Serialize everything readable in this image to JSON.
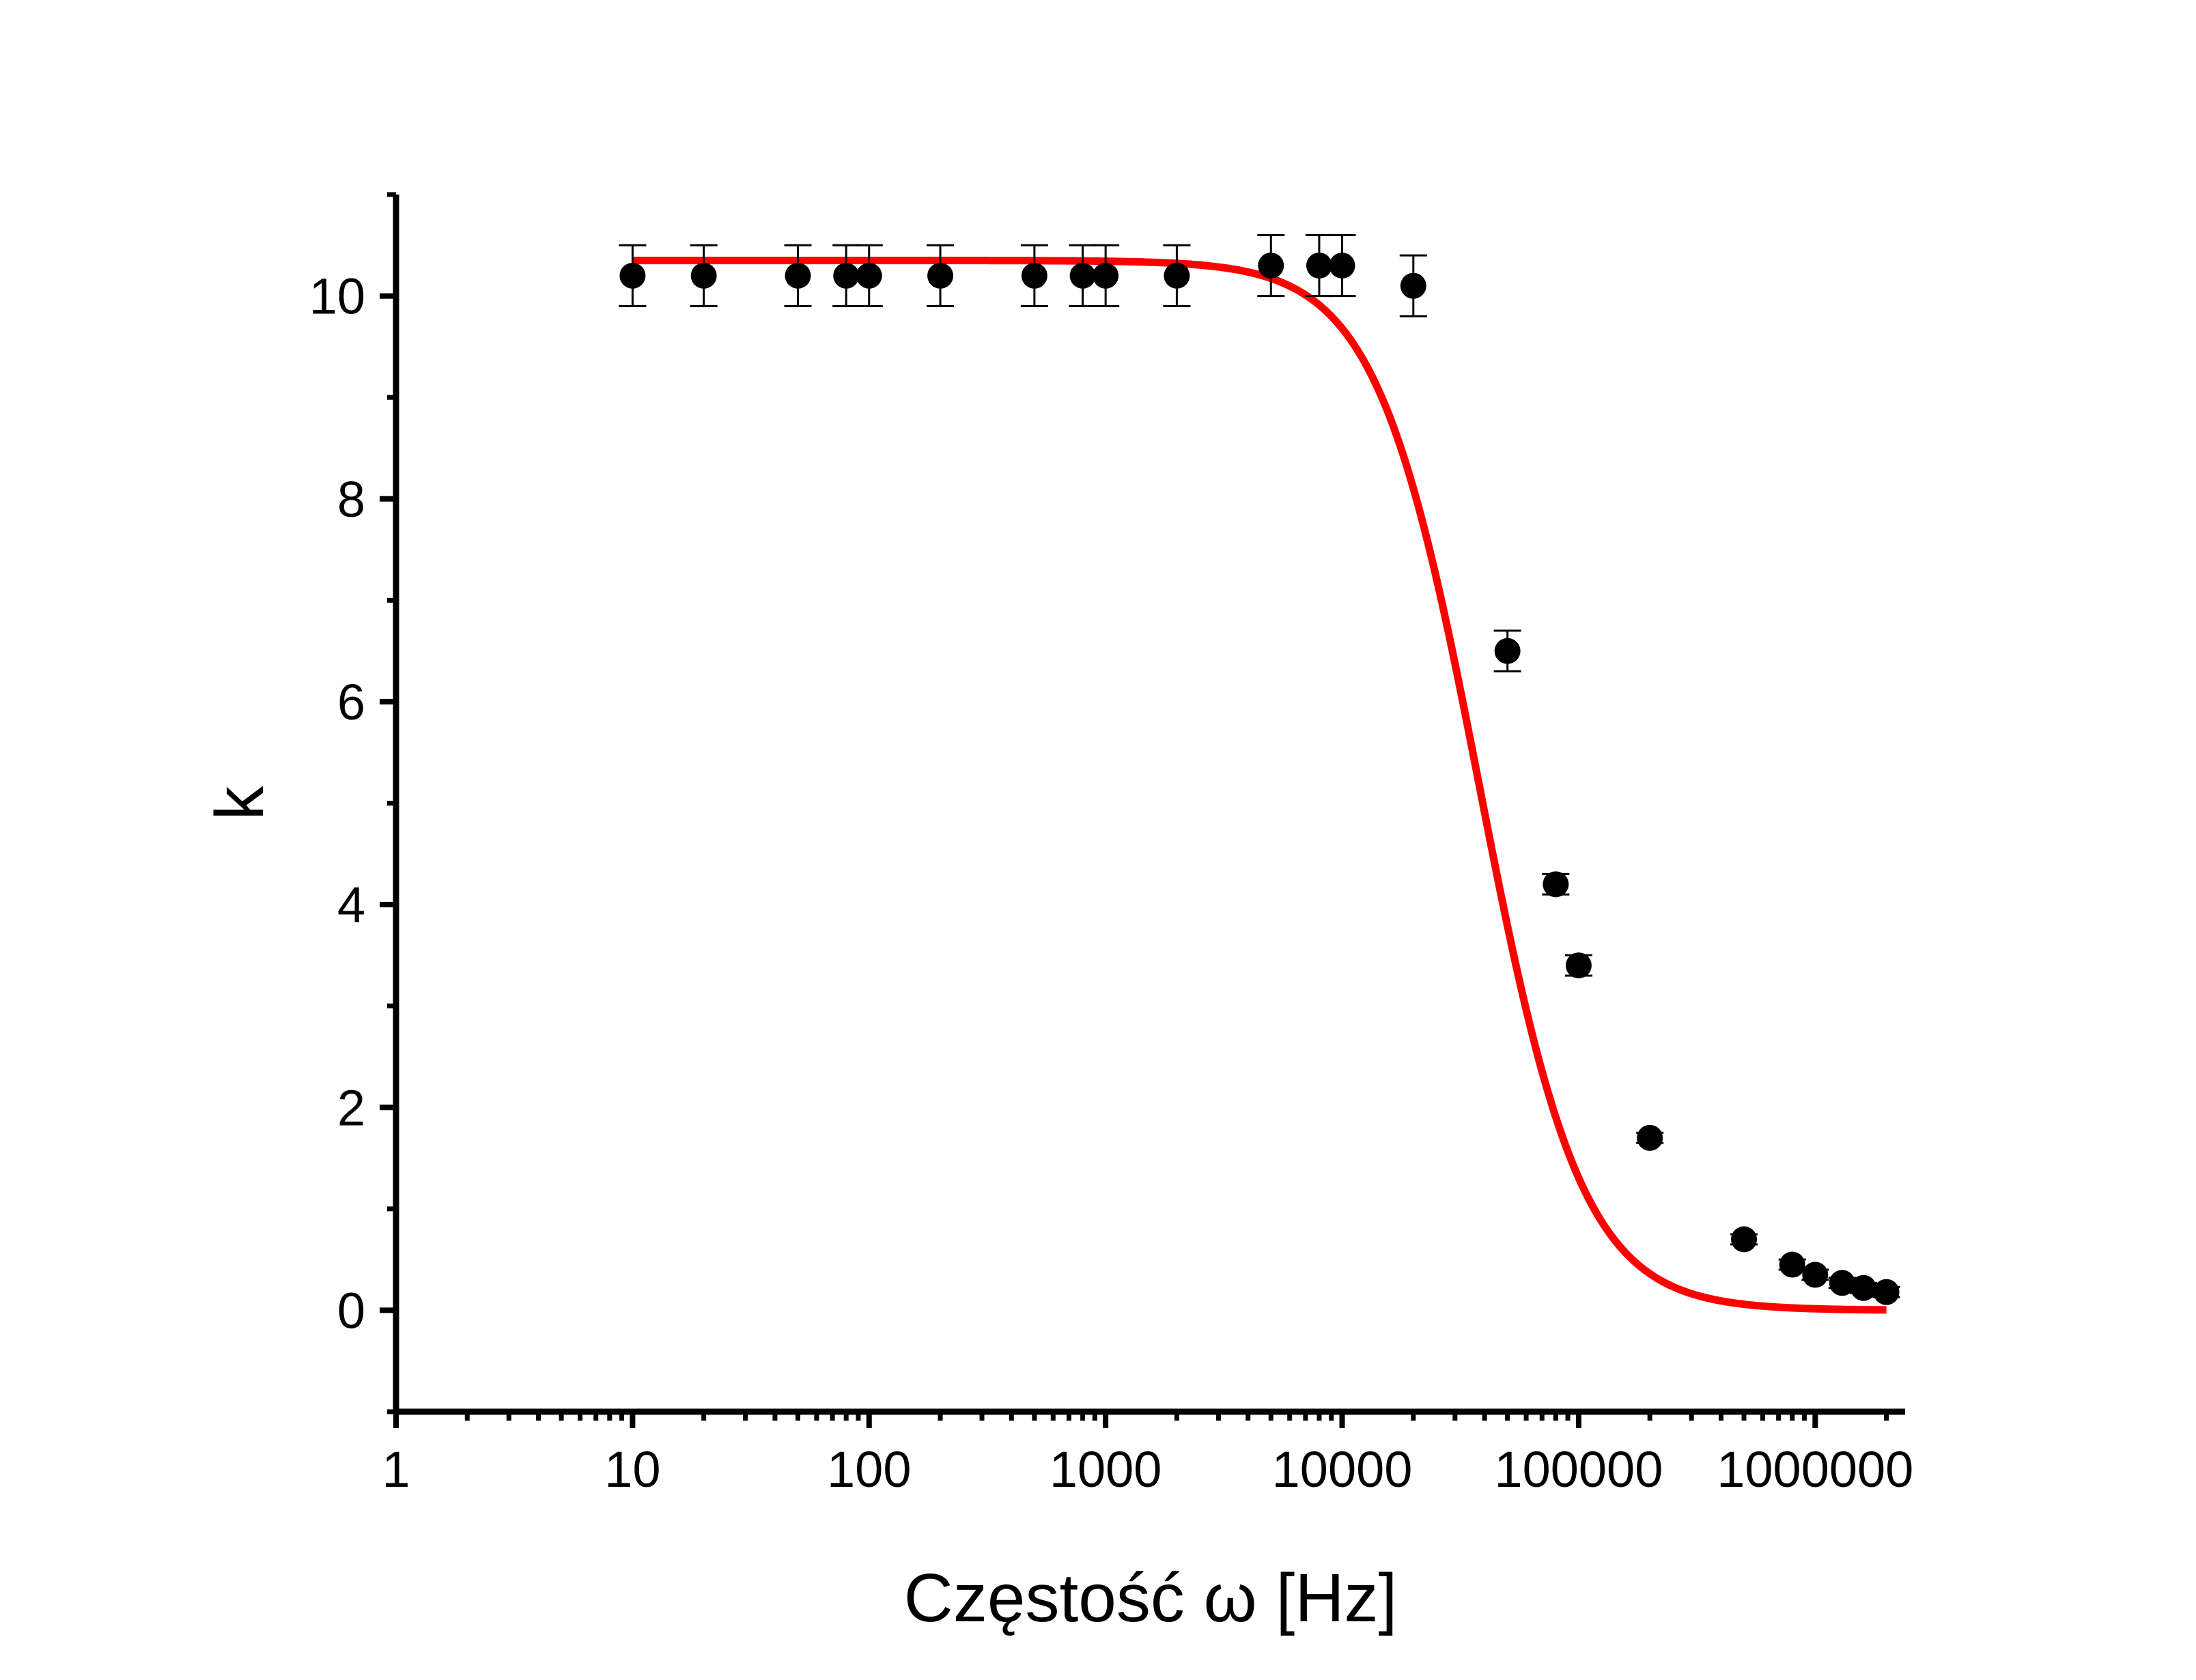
{
  "chart_data": {
    "type": "scatter",
    "title": "",
    "xlabel": "Częstość ω [Hz]",
    "ylabel": "k",
    "x_scale": "log",
    "xlim": [
      1,
      2400000
    ],
    "ylim": [
      -1,
      11
    ],
    "x_ticks": [
      1,
      10,
      100,
      1000,
      10000,
      100000,
      1000000
    ],
    "x_tick_labels": [
      "1",
      "10",
      "100",
      "1000",
      "10000",
      "100000",
      "1000000"
    ],
    "y_ticks": [
      0,
      2,
      4,
      6,
      8,
      10
    ],
    "y_tick_labels": [
      "0",
      "2",
      "4",
      "6",
      "8",
      "10"
    ],
    "grid": false,
    "series": [
      {
        "kind": "points-with-error-bars",
        "color": "#000000",
        "points": [
          {
            "x": 10,
            "y": 10.2,
            "err": 0.3
          },
          {
            "x": 20,
            "y": 10.2,
            "err": 0.3
          },
          {
            "x": 50,
            "y": 10.2,
            "err": 0.3
          },
          {
            "x": 80,
            "y": 10.2,
            "err": 0.3
          },
          {
            "x": 100,
            "y": 10.2,
            "err": 0.3
          },
          {
            "x": 200,
            "y": 10.2,
            "err": 0.3
          },
          {
            "x": 500,
            "y": 10.2,
            "err": 0.3
          },
          {
            "x": 800,
            "y": 10.2,
            "err": 0.3
          },
          {
            "x": 1000,
            "y": 10.2,
            "err": 0.3
          },
          {
            "x": 2000,
            "y": 10.2,
            "err": 0.3
          },
          {
            "x": 5000,
            "y": 10.3,
            "err": 0.3
          },
          {
            "x": 8000,
            "y": 10.3,
            "err": 0.3
          },
          {
            "x": 10000,
            "y": 10.3,
            "err": 0.3
          },
          {
            "x": 20000,
            "y": 10.1,
            "err": 0.3
          },
          {
            "x": 50000,
            "y": 6.5,
            "err": 0.2
          },
          {
            "x": 80000,
            "y": 4.2,
            "err": 0.1
          },
          {
            "x": 100000,
            "y": 3.4,
            "err": 0.1
          },
          {
            "x": 200000,
            "y": 1.7,
            "err": 0.05
          },
          {
            "x": 500000,
            "y": 0.7,
            "err": 0.05
          },
          {
            "x": 800000,
            "y": 0.45,
            "err": 0.05
          },
          {
            "x": 1000000,
            "y": 0.35,
            "err": 0.05
          },
          {
            "x": 1300000,
            "y": 0.27,
            "err": 0.05
          },
          {
            "x": 1600000,
            "y": 0.22,
            "err": 0.05
          },
          {
            "x": 2000000,
            "y": 0.18,
            "err": 0.05
          }
        ]
      },
      {
        "kind": "fit-curve",
        "color": "#ff0000",
        "x_range": [
          10,
          2000000
        ],
        "model": "lorentzian",
        "k0": 10.35,
        "omega_c": 38000
      }
    ]
  }
}
